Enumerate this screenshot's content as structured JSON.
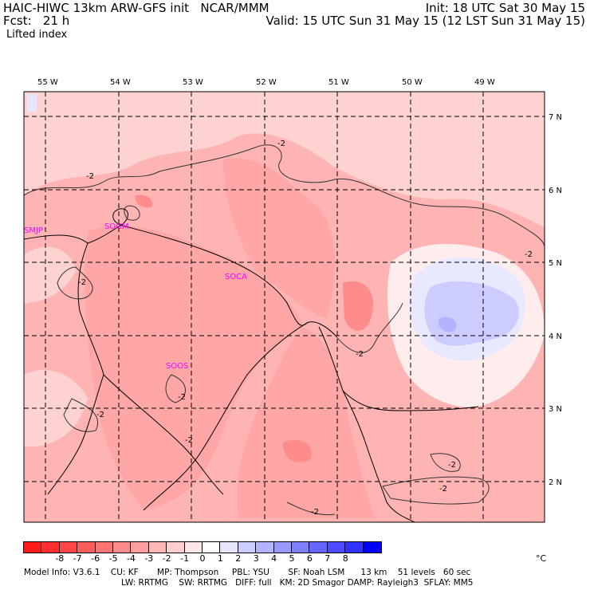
{
  "header": {
    "left_line1": "HAIC-HIWC 13km ARW-GFS init   NCAR/MMM",
    "left_line2": "Fcst:   21 h",
    "right_line1": "Init: 18 UTC Sat 30 May 15",
    "right_line2": "Valid: 15 UTC Sun 31 May 15 (12 LST Sun 31 May 15)",
    "field_label": "Lifted index"
  },
  "map": {
    "lon_labels": [
      "55 W",
      "54 W",
      "53 W",
      "52 W",
      "51 W",
      "50 W",
      "49 W"
    ],
    "lat_labels": [
      "7 N",
      "6 N",
      "5 N",
      "4 N",
      "3 N",
      "2 N"
    ],
    "stations": [
      "SMJP",
      "SOGM",
      "SOCA",
      "SOOS"
    ],
    "contour_label": "-2"
  },
  "colorbar": {
    "colors": [
      "#ff1a1a",
      "#ff2f2f",
      "#ff4545",
      "#ff5c5c",
      "#ff7373",
      "#ff8a8a",
      "#ffa0a0",
      "#ffb8b8",
      "#ffcfcf",
      "#ffe7e7",
      "#ffffff",
      "#e6e6ff",
      "#ccccff",
      "#b3b3ff",
      "#9999ff",
      "#8080ff",
      "#6666ff",
      "#4d4dff",
      "#3333ff",
      "#0000ff"
    ],
    "labels": [
      "-8",
      "-7",
      "-6",
      "-5",
      "-4",
      "-3",
      "-2",
      "-1",
      "0",
      "1",
      "2",
      "3",
      "4",
      "5",
      "6",
      "7",
      "8"
    ],
    "unit": "°C"
  },
  "footer": {
    "line1": "Model Info: V3.6.1    CU: KF       MP: Thompson     PBL: YSU       SF: Noah LSM      13 km    51 levels   60 sec",
    "line2": "LW: RRTMG    SW: RRTMG   DIFF: full   KM: 2D Smagor DAMP: Rayleigh3  SFLAY: MM5"
  }
}
